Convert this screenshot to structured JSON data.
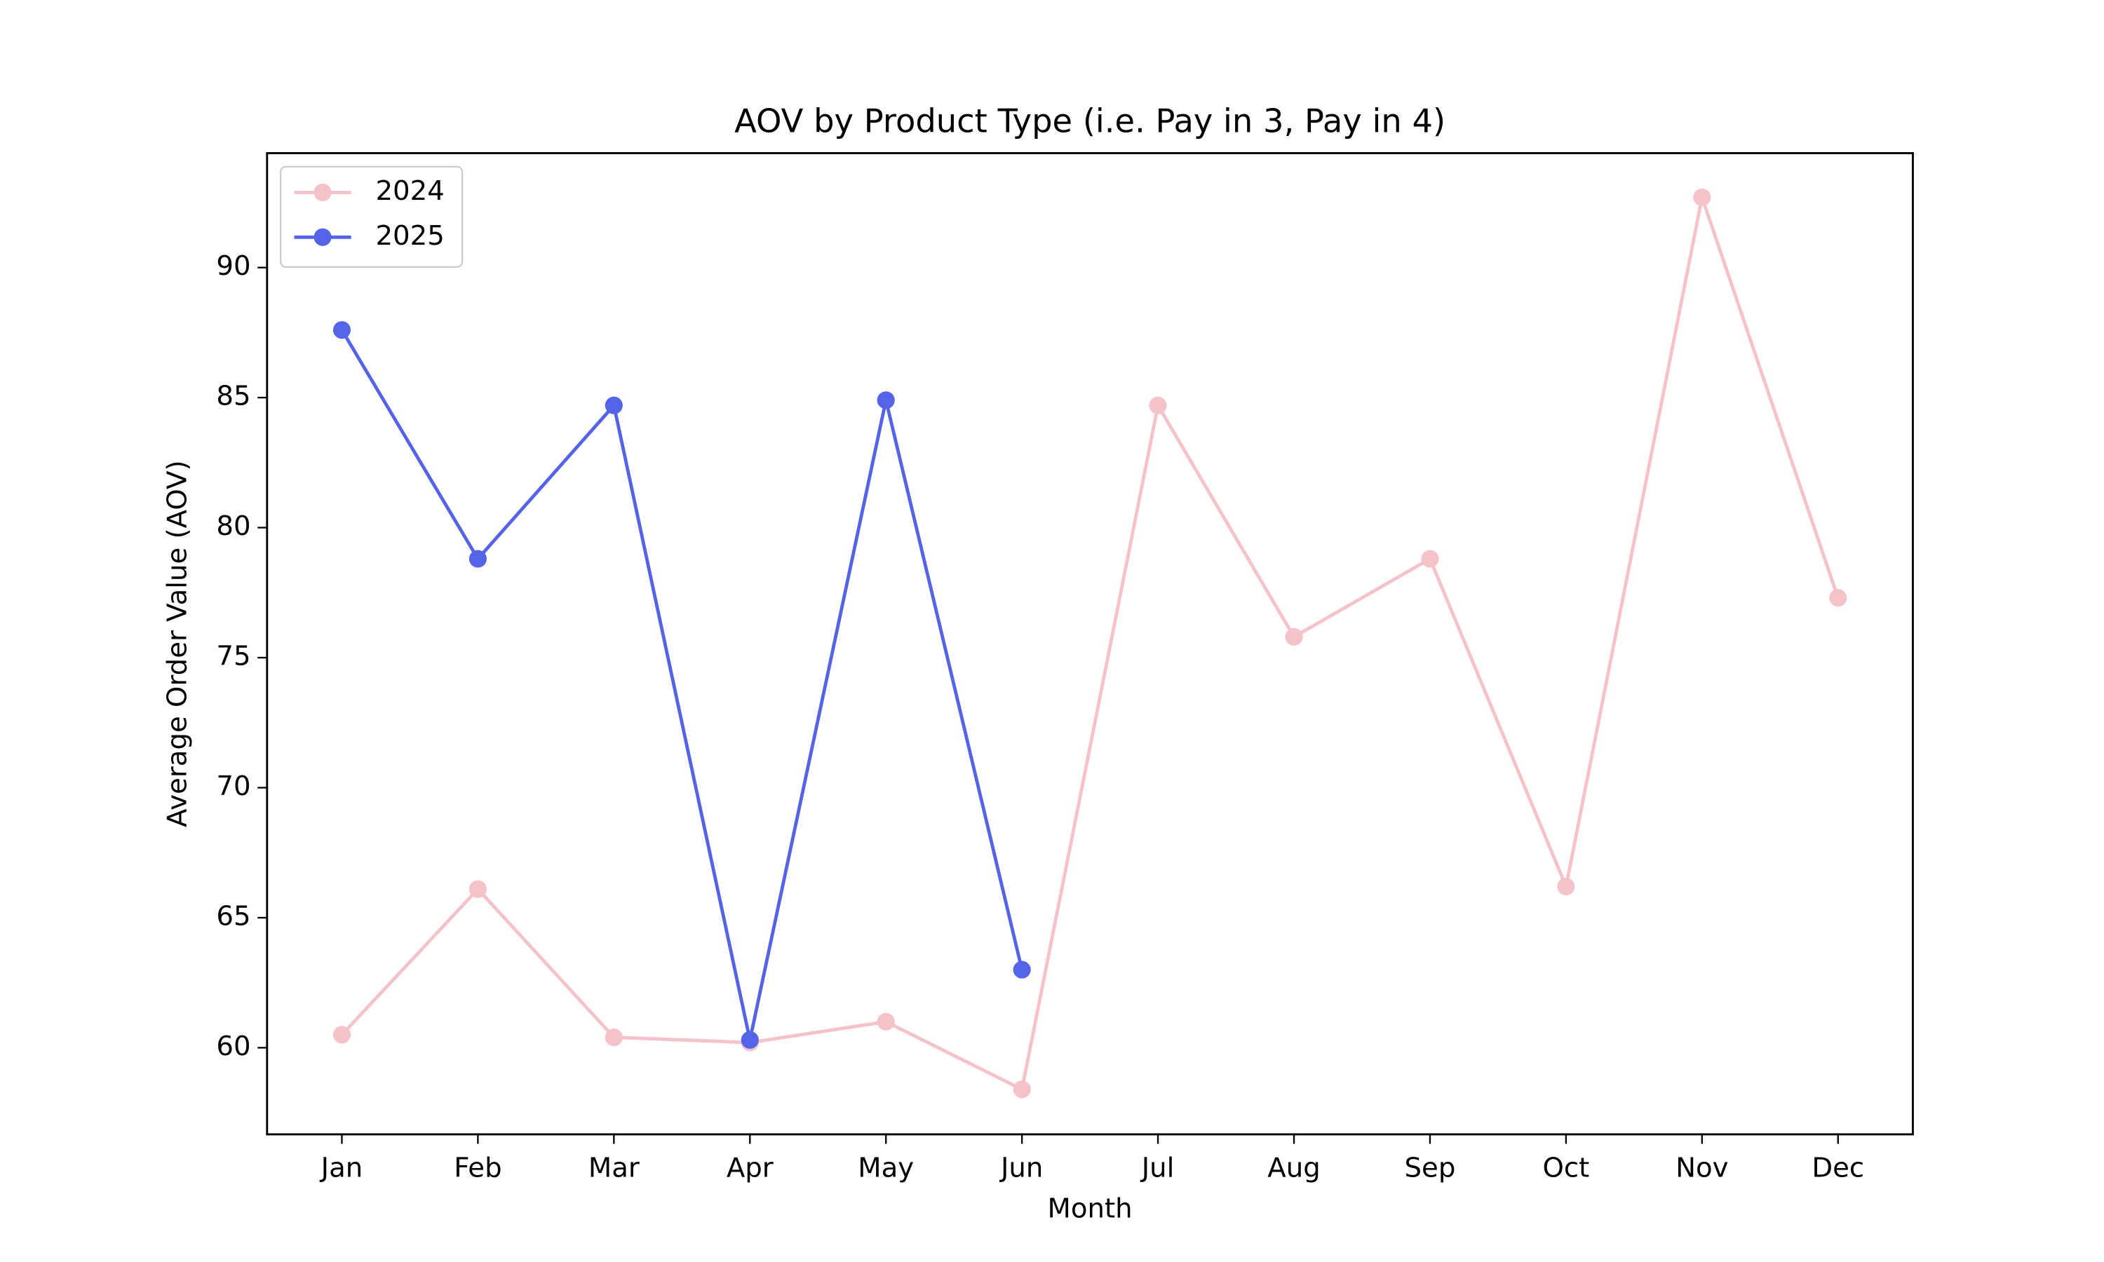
{
  "chart_data": {
    "type": "line",
    "title": "AOV by Product Type (i.e. Pay in 3, Pay in 4)",
    "x_label": "Month",
    "y_label": "Average Order Value (AOV)",
    "categories": [
      "Jan",
      "Feb",
      "Mar",
      "Apr",
      "May",
      "Jun",
      "Jul",
      "Aug",
      "Sep",
      "Oct",
      "Nov",
      "Dec"
    ],
    "series": [
      {
        "name": "2024",
        "color": "#f4c2c8",
        "values": [
          60.5,
          66.1,
          60.4,
          60.2,
          61.0,
          58.4,
          84.7,
          75.8,
          78.8,
          66.2,
          92.7,
          77.3
        ]
      },
      {
        "name": "2025",
        "color": "#5563e8",
        "values": [
          87.6,
          78.8,
          84.7,
          60.3,
          84.9,
          63.0,
          null,
          null,
          null,
          null,
          null,
          null
        ]
      }
    ],
    "ylim": [
      56.67,
      94.4
    ],
    "yticks": [
      60,
      65,
      70,
      75,
      80,
      85,
      90
    ],
    "grid": false,
    "legend": "upper left"
  }
}
